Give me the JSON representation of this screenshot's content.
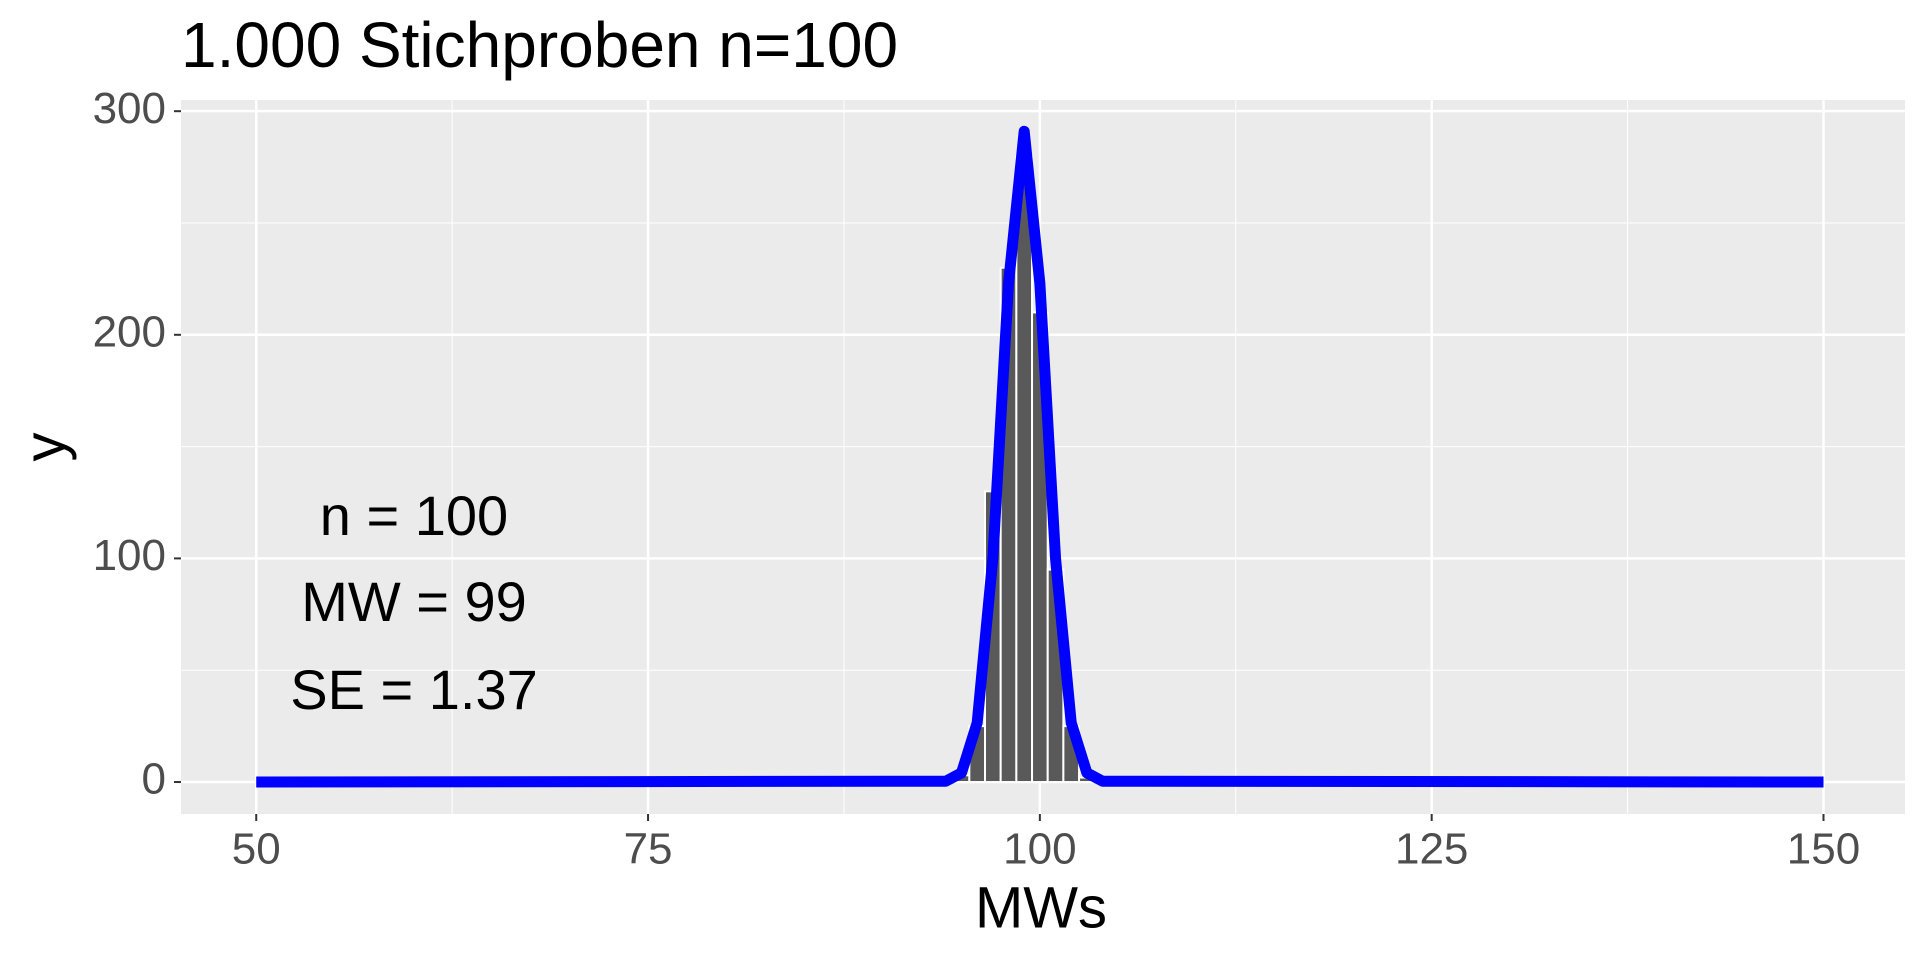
{
  "chart_data": {
    "type": "histogram",
    "title": "1.000 Stichproben n=100",
    "x_label": "MWs",
    "y_label": "y",
    "bins": [
      94.5,
      95.5,
      96.5,
      97.5,
      98.5,
      99.5,
      100.5,
      101.5,
      102.5,
      103.5
    ],
    "counts": [
      3,
      25,
      130,
      230,
      280,
      210,
      95,
      25,
      2
    ],
    "bar_color": "#595959",
    "curve": {
      "color": "#0000ff",
      "x": [
        50,
        94,
        95,
        96,
        97,
        98,
        99,
        100,
        101,
        102,
        103,
        104,
        150
      ],
      "values": [
        0,
        0.37,
        4.1,
        26.5,
        100,
        223,
        291,
        223,
        100,
        26.5,
        4.1,
        0.37,
        0
      ]
    },
    "annotations": [
      "n = 100",
      "MW = 99",
      "SE = 1.37"
    ],
    "xlim": [
      45.2,
      155.2
    ],
    "xticks": [
      50,
      75,
      100,
      125,
      150
    ],
    "ylim": [
      -14.3,
      305
    ],
    "yticks": [
      0,
      100,
      200,
      300
    ],
    "grid": true
  }
}
